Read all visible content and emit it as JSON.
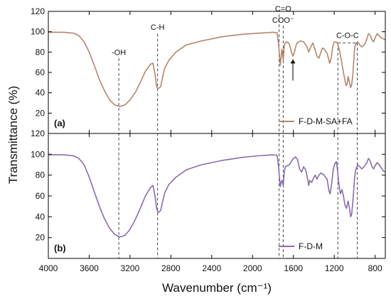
{
  "chart_data": {
    "type": "line",
    "xlabel": "Wavenumber (cm⁻¹)",
    "ylabel": "Transmittance (%)",
    "xlim": [
      4000,
      700
    ],
    "xticks": [
      4000,
      3600,
      3200,
      2800,
      2400,
      2000,
      1600,
      1200,
      800
    ],
    "xtick_labels": [
      "4000",
      "3600",
      "3200",
      "2800",
      "2400",
      "2000",
      "1600",
      "1200",
      "800"
    ],
    "legend_placement": "inside-bottom-right",
    "panels": [
      {
        "label": "(a)",
        "ylim": [
          0,
          120
        ],
        "yticks": [
          0,
          20,
          40,
          60,
          80,
          100,
          120
        ],
        "ytick_labels": [
          "",
          "20",
          "40",
          "60",
          "80",
          "100",
          "120"
        ],
        "series": [
          {
            "name": "F-D-M-SA+FA",
            "color": "#b5856a",
            "points": [
              [
                4000,
                99.5
              ],
              [
                3850,
                99.5
              ],
              [
                3750,
                98.5
              ],
              [
                3700,
                96
              ],
              [
                3650,
                90
              ],
              [
                3600,
                80
              ],
              [
                3550,
                67
              ],
              [
                3500,
                53
              ],
              [
                3450,
                42
              ],
              [
                3400,
                33
              ],
              [
                3350,
                28
              ],
              [
                3300,
                26.5
              ],
              [
                3250,
                28
              ],
              [
                3200,
                33
              ],
              [
                3150,
                40
              ],
              [
                3100,
                50
              ],
              [
                3050,
                61
              ],
              [
                3000,
                68
              ],
              [
                2975,
                69
              ],
              [
                2955,
                58
              ],
              [
                2940,
                46
              ],
              [
                2925,
                44
              ],
              [
                2900,
                46
              ],
              [
                2880,
                56
              ],
              [
                2860,
                64
              ],
              [
                2820,
                72
              ],
              [
                2750,
                80
              ],
              [
                2650,
                87
              ],
              [
                2500,
                91
              ],
              [
                2300,
                95
              ],
              [
                2100,
                97.5
              ],
              [
                1950,
                98.5
              ],
              [
                1800,
                99.5
              ],
              [
                1760,
                99
              ],
              [
                1745,
                88
              ],
              [
                1735,
                75
              ],
              [
                1728,
                67
              ],
              [
                1720,
                76
              ],
              [
                1712,
                83
              ],
              [
                1700,
                72
              ],
              [
                1690,
                86
              ],
              [
                1680,
                89
              ],
              [
                1660,
                90
              ],
              [
                1640,
                88
              ],
              [
                1620,
                80
              ],
              [
                1605,
                76
              ],
              [
                1590,
                80
              ],
              [
                1570,
                88
              ],
              [
                1550,
                90
              ],
              [
                1530,
                91
              ],
              [
                1500,
                90
              ],
              [
                1470,
                86
              ],
              [
                1450,
                80
              ],
              [
                1430,
                85
              ],
              [
                1410,
                89
              ],
              [
                1390,
                83
              ],
              [
                1370,
                76
              ],
              [
                1350,
                74
              ],
              [
                1330,
                80
              ],
              [
                1315,
                84
              ],
              [
                1300,
                83
              ],
              [
                1270,
                79
              ],
              [
                1245,
                69
              ],
              [
                1230,
                74
              ],
              [
                1215,
                85
              ],
              [
                1200,
                90
              ],
              [
                1180,
                90
              ],
              [
                1165,
                88
              ],
              [
                1150,
                82
              ],
              [
                1130,
                72
              ],
              [
                1110,
                60
              ],
              [
                1095,
                52
              ],
              [
                1085,
                47
              ],
              [
                1075,
                48
              ],
              [
                1065,
                56
              ],
              [
                1055,
                52
              ],
              [
                1040,
                45
              ],
              [
                1030,
                48
              ],
              [
                1020,
                55
              ],
              [
                1010,
                70
              ],
              [
                1000,
                84
              ],
              [
                990,
                88
              ],
              [
                970,
                90
              ],
              [
                950,
                87
              ],
              [
                930,
                85
              ],
              [
                900,
                88
              ],
              [
                880,
                93
              ],
              [
                865,
                98
              ],
              [
                850,
                97
              ],
              [
                830,
                92
              ],
              [
                815,
                90
              ],
              [
                800,
                94
              ],
              [
                780,
                98
              ],
              [
                760,
                96
              ],
              [
                740,
                94
              ],
              [
                720,
                93
              ],
              [
                700,
                92
              ]
            ]
          }
        ]
      },
      {
        "label": "(b)",
        "ylim": [
          0,
          120
        ],
        "yticks": [
          0,
          20,
          40,
          60,
          80,
          100,
          120
        ],
        "ytick_labels": [
          "",
          "20",
          "40",
          "60",
          "80",
          "100",
          "120"
        ],
        "series": [
          {
            "name": "F-D-M",
            "color": "#8a6bb0",
            "points": [
              [
                4000,
                99.5
              ],
              [
                3850,
                99.5
              ],
              [
                3750,
                98.5
              ],
              [
                3700,
                96
              ],
              [
                3650,
                90
              ],
              [
                3600,
                78
              ],
              [
                3550,
                64
              ],
              [
                3500,
                50
              ],
              [
                3450,
                38
              ],
              [
                3400,
                29
              ],
              [
                3350,
                23
              ],
              [
                3300,
                20.5
              ],
              [
                3250,
                22
              ],
              [
                3200,
                28
              ],
              [
                3150,
                37
              ],
              [
                3100,
                48
              ],
              [
                3050,
                60
              ],
              [
                3000,
                68
              ],
              [
                2975,
                70
              ],
              [
                2955,
                60
              ],
              [
                2940,
                48
              ],
              [
                2925,
                44
              ],
              [
                2900,
                46
              ],
              [
                2880,
                55
              ],
              [
                2860,
                63
              ],
              [
                2820,
                71
              ],
              [
                2750,
                78
              ],
              [
                2650,
                85
              ],
              [
                2500,
                90
              ],
              [
                2300,
                94
              ],
              [
                2100,
                97
              ],
              [
                1950,
                98.5
              ],
              [
                1800,
                99.5
              ],
              [
                1760,
                99
              ],
              [
                1745,
                88
              ],
              [
                1735,
                76
              ],
              [
                1728,
                69
              ],
              [
                1720,
                73
              ],
              [
                1712,
                75
              ],
              [
                1700,
                70
              ],
              [
                1690,
                82
              ],
              [
                1680,
                88
              ],
              [
                1660,
                89
              ],
              [
                1640,
                90
              ],
              [
                1620,
                93
              ],
              [
                1600,
                96
              ],
              [
                1580,
                97.5
              ],
              [
                1560,
                95
              ],
              [
                1540,
                86
              ],
              [
                1520,
                83
              ],
              [
                1500,
                88
              ],
              [
                1480,
                85
              ],
              [
                1460,
                76
              ],
              [
                1450,
                70
              ],
              [
                1440,
                75
              ],
              [
                1420,
                73
              ],
              [
                1400,
                78
              ],
              [
                1385,
                80
              ],
              [
                1370,
                76
              ],
              [
                1350,
                80
              ],
              [
                1330,
                82
              ],
              [
                1300,
                80
              ],
              [
                1270,
                76
              ],
              [
                1250,
                64
              ],
              [
                1240,
                62
              ],
              [
                1225,
                72
              ],
              [
                1210,
                85
              ],
              [
                1195,
                91
              ],
              [
                1180,
                93
              ],
              [
                1170,
                86
              ],
              [
                1155,
                72
              ],
              [
                1140,
                62
              ],
              [
                1125,
                66
              ],
              [
                1110,
                60
              ],
              [
                1095,
                51
              ],
              [
                1080,
                48
              ],
              [
                1065,
                55
              ],
              [
                1050,
                48
              ],
              [
                1040,
                40
              ],
              [
                1030,
                42
              ],
              [
                1020,
                52
              ],
              [
                1010,
                65
              ],
              [
                1000,
                78
              ],
              [
                990,
                85
              ],
              [
                970,
                90
              ],
              [
                950,
                88
              ],
              [
                930,
                86
              ],
              [
                900,
                89
              ],
              [
                880,
                92
              ],
              [
                865,
                96
              ],
              [
                850,
                94
              ],
              [
                830,
                88
              ],
              [
                815,
                86
              ],
              [
                800,
                89
              ],
              [
                780,
                92
              ],
              [
                760,
                90
              ],
              [
                740,
                87
              ],
              [
                720,
                84
              ],
              [
                700,
                83
              ]
            ]
          }
        ]
      }
    ],
    "guide_lines_x": [
      3310,
      2930,
      1740,
      1700,
      1165,
      975
    ],
    "annotations": [
      {
        "text": "-OH",
        "x": 3310,
        "y": 77,
        "panel": 0
      },
      {
        "text": "C-H",
        "x": 2930,
        "y": 102,
        "panel": 0
      },
      {
        "text": "C=O",
        "x": 1700,
        "y": 120,
        "panel": 0
      },
      {
        "text": "COO⁻",
        "x": 1700,
        "y": 109,
        "panel": 0
      },
      {
        "text": "C-O-C",
        "x": 1070,
        "y": 94,
        "panel": 0
      }
    ],
    "arrow": {
      "x": 1605,
      "y_from": 52,
      "y_to": 73,
      "panel": 0
    },
    "bracket": {
      "x_from": 1165,
      "x_to": 975,
      "y": 89,
      "panel": 0
    }
  }
}
